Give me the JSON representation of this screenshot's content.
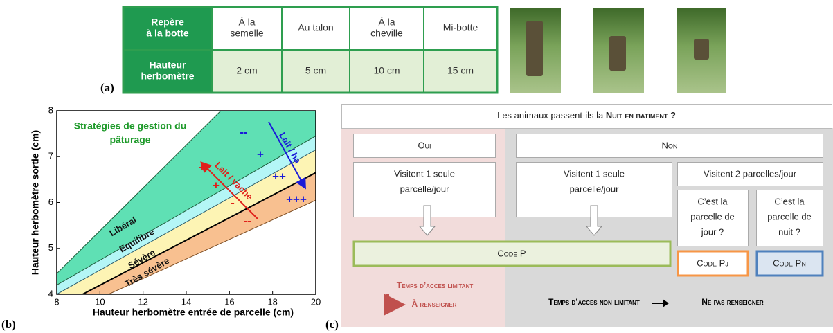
{
  "panel_labels": [
    "(a)",
    "(b)",
    "(c)"
  ],
  "table": {
    "rows": [
      [
        [
          "Repère",
          "à la botte"
        ],
        [
          "À la",
          "semelle"
        ],
        [
          "Au talon"
        ],
        [
          "À la",
          "cheville"
        ],
        [
          "Mi-botte"
        ]
      ],
      [
        [
          "Hauteur",
          "herbomètre"
        ],
        [
          "2 cm"
        ],
        [
          "5 cm"
        ],
        [
          "10 cm"
        ],
        [
          "15 cm"
        ]
      ]
    ]
  },
  "chart_data": {
    "type": "area",
    "title": [
      "Stratégies de gestion du",
      "pâturage"
    ],
    "xlabel": "Hauteur herbomètre entrée de parcelle (cm)",
    "ylabel": "Hauteur herbomètre sortie (cm)",
    "xlim": [
      8,
      20
    ],
    "ylim": [
      4,
      8
    ],
    "xticks": [
      8,
      10,
      12,
      14,
      16,
      18,
      20
    ],
    "yticks": [
      4,
      5,
      6,
      7,
      8
    ],
    "series": [
      {
        "color": "#1e5c3a",
        "x": [
          8,
          15.6
        ],
        "values": [
          4.45,
          8
        ]
      },
      {
        "color": "#1e5c3a",
        "x": [
          8,
          20
        ],
        "values": [
          4.2,
          7.45
        ]
      },
      {
        "color": "#2a5a6a",
        "x": [
          8,
          20
        ],
        "values": [
          4.0,
          7.15
        ]
      },
      {
        "color": "#000000",
        "x": [
          9.2,
          20
        ],
        "values": [
          4.0,
          6.65
        ]
      },
      {
        "color": "#7a4a20",
        "x": [
          10.4,
          20
        ],
        "values": [
          4.0,
          6.05
        ]
      }
    ],
    "zones": [
      {
        "name": "Libéral",
        "color": "#5fe0b4"
      },
      {
        "name": "Equilibre",
        "color": "#b4f6f6"
      },
      {
        "name": "Sévère",
        "color": "#fdf4b4"
      },
      {
        "name": "Très sévère",
        "color": "#f8c090"
      }
    ],
    "annotations": [
      {
        "text": "--",
        "color": "#1a1ad8"
      },
      {
        "text": "+",
        "color": "#1a1ad8"
      },
      {
        "text": "++",
        "color": "#1a1ad8"
      },
      {
        "text": "+++",
        "color": "#1a1ad8"
      },
      {
        "text": "+",
        "color": "#e0201a"
      },
      {
        "text": "+",
        "color": "#e0201a"
      },
      {
        "text": "-",
        "color": "#e0201a"
      },
      {
        "text": "--",
        "color": "#e0201a"
      },
      {
        "text": "Lait / vache",
        "color": "#e0201a"
      },
      {
        "text": "Lait / ha",
        "color": "#1a1ad8"
      }
    ]
  },
  "diagram": {
    "question": [
      "Les animaux passent-ils la ",
      "Nuit en batiment ?"
    ],
    "yes": "Oui",
    "no": "Non",
    "one_plot_yes": [
      "Visitent 1 seule",
      "parcelle/jour"
    ],
    "one_plot_no": [
      "Visitent 1 seule",
      "parcelle/jour"
    ],
    "two_plots": "Visitent 2 parcelles/jour",
    "day_question": [
      "C’est la",
      "parcelle de",
      "jour ?"
    ],
    "night_question": [
      "C’est la",
      "parcelle de",
      "nuit ?"
    ],
    "code_p": "Code P",
    "code_pj": "Code Pj",
    "code_pn": "Code Pn",
    "limiting": "Temps d’acces limitant",
    "fill_in": "À renseigner",
    "not_limiting": "Temps d’acces non limitant",
    "do_not_fill": "Ne pas renseigner"
  }
}
